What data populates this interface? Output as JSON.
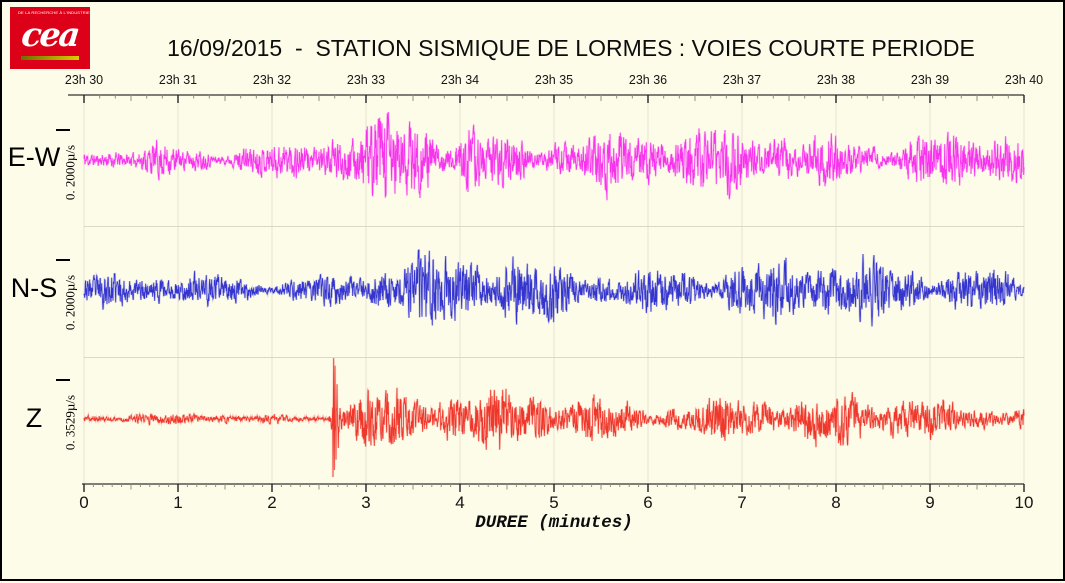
{
  "logo": {
    "top_text": "DE LA RECHERCHE À L'INDUSTRIE",
    "brand": "cea",
    "brand_color": "#DC0018"
  },
  "chart_data": {
    "type": "line",
    "title": "16/09/2015  -  STATION SISMIQUE DE LORMES : VOIES COURTE PERIODE",
    "xlabel": "DUREE (minutes)",
    "background_color": "#FDFCE8",
    "grid": "vertical line at each minute, horizontal separator between channel panels",
    "top_axis": {
      "description": "time of day",
      "labels": [
        "23h 30",
        "23h 31",
        "23h 32",
        "23h 33",
        "23h 34",
        "23h 35",
        "23h 36",
        "23h 37",
        "23h 38",
        "23h 39",
        "23h 40"
      ],
      "minor_ticks_per_major": 6
    },
    "bottom_axis": {
      "labels": [
        "0",
        "1",
        "2",
        "3",
        "4",
        "5",
        "6",
        "7",
        "8",
        "9",
        "10"
      ],
      "range_minutes": [
        0,
        10
      ],
      "minor_ticks_per_major": 10
    },
    "channels": [
      {
        "name": "E-W",
        "scale_label": "0. 2000µ/s",
        "color": "#F733EE",
        "halo": "#FBAAF2",
        "noise_envelope_rel": [
          [
            0,
            0.3
          ],
          [
            0.4,
            0.34
          ],
          [
            0.8,
            0.4
          ],
          [
            1.1,
            0.32
          ],
          [
            1.5,
            0.3
          ],
          [
            2.0,
            0.3
          ],
          [
            2.4,
            0.33
          ],
          [
            2.7,
            0.48
          ],
          [
            3.0,
            0.62
          ],
          [
            3.3,
            0.88
          ],
          [
            3.55,
            0.97
          ],
          [
            3.8,
            0.82
          ],
          [
            4.05,
            0.88
          ],
          [
            4.3,
            0.62
          ],
          [
            4.55,
            0.68
          ],
          [
            4.8,
            0.52
          ],
          [
            5.05,
            0.62
          ],
          [
            5.3,
            0.52
          ],
          [
            5.55,
            0.58
          ],
          [
            5.85,
            0.47
          ],
          [
            6.1,
            0.56
          ],
          [
            6.4,
            0.5
          ],
          [
            6.7,
            0.56
          ],
          [
            7.0,
            0.62
          ],
          [
            7.25,
            0.82
          ],
          [
            7.5,
            0.76
          ],
          [
            7.75,
            0.56
          ],
          [
            8.0,
            0.64
          ],
          [
            8.3,
            0.56
          ],
          [
            8.6,
            0.5
          ],
          [
            9.0,
            0.56
          ],
          [
            9.35,
            0.5
          ],
          [
            9.7,
            0.56
          ],
          [
            10,
            0.52
          ]
        ]
      },
      {
        "name": "N-S",
        "scale_label": "0. 2000µ/s",
        "color": "#3434CF",
        "halo": "#A9A9E6",
        "noise_envelope_rel": [
          [
            0,
            0.3
          ],
          [
            0.5,
            0.32
          ],
          [
            1.0,
            0.34
          ],
          [
            1.5,
            0.31
          ],
          [
            2.0,
            0.3
          ],
          [
            2.5,
            0.36
          ],
          [
            2.8,
            0.52
          ],
          [
            3.05,
            0.88
          ],
          [
            3.25,
            0.72
          ],
          [
            3.5,
            0.78
          ],
          [
            3.75,
            0.66
          ],
          [
            4.0,
            0.72
          ],
          [
            4.25,
            0.62
          ],
          [
            4.5,
            0.66
          ],
          [
            4.8,
            0.56
          ],
          [
            5.1,
            0.62
          ],
          [
            5.4,
            0.52
          ],
          [
            5.7,
            0.58
          ],
          [
            6.0,
            0.52
          ],
          [
            6.3,
            0.68
          ],
          [
            6.55,
            0.62
          ],
          [
            6.8,
            0.52
          ],
          [
            7.1,
            0.6
          ],
          [
            7.4,
            0.66
          ],
          [
            7.7,
            0.56
          ],
          [
            8.0,
            0.62
          ],
          [
            8.4,
            0.52
          ],
          [
            8.8,
            0.56
          ],
          [
            9.2,
            0.52
          ],
          [
            9.6,
            0.54
          ],
          [
            10,
            0.52
          ]
        ]
      },
      {
        "name": "Z",
        "scale_label": "0. 3529µ/s",
        "color": "#EF372B",
        "halo": "#F7A8A0",
        "event": {
          "onset_min": 2.65
        },
        "noise_envelope_rel": [
          [
            0,
            0.07
          ],
          [
            0.8,
            0.075
          ],
          [
            1.3,
            0.09
          ],
          [
            1.8,
            0.07
          ],
          [
            2.45,
            0.07
          ],
          [
            2.6,
            0.09
          ],
          [
            2.65,
            1.05
          ],
          [
            2.72,
            0.92
          ],
          [
            2.85,
            0.58
          ],
          [
            3.0,
            0.62
          ],
          [
            3.15,
            0.52
          ],
          [
            3.35,
            0.58
          ],
          [
            3.6,
            0.46
          ],
          [
            3.85,
            0.52
          ],
          [
            4.1,
            0.42
          ],
          [
            4.35,
            0.52
          ],
          [
            4.6,
            0.4
          ],
          [
            4.9,
            0.44
          ],
          [
            5.2,
            0.34
          ],
          [
            5.5,
            0.37
          ],
          [
            5.8,
            0.32
          ],
          [
            6.1,
            0.34
          ],
          [
            6.4,
            0.32
          ],
          [
            6.7,
            0.4
          ],
          [
            7.0,
            0.5
          ],
          [
            7.3,
            0.45
          ],
          [
            7.6,
            0.34
          ],
          [
            8.0,
            0.37
          ],
          [
            8.4,
            0.32
          ],
          [
            8.8,
            0.34
          ],
          [
            9.2,
            0.3
          ],
          [
            9.6,
            0.32
          ],
          [
            10,
            0.32
          ]
        ]
      }
    ]
  }
}
